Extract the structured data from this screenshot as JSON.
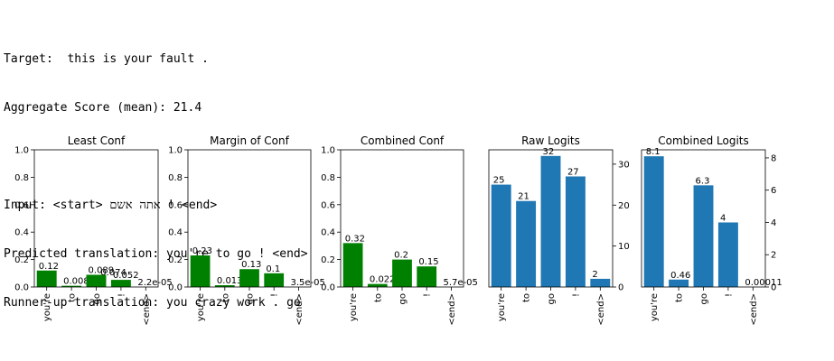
{
  "header": {
    "target_line": "Target:  this is your fault .",
    "score_line": "Aggregate Score (mean): 21.4",
    "input_line": "Input: <start> אתה אשם ! <end>",
    "predicted_line": "Predicted translation: you're to go ! <end>",
    "runner_up_line": "Runner-up translation: you crazy work . go"
  },
  "colors": {
    "green": "#008000",
    "blue": "#1f77b4"
  },
  "chart_data": [
    {
      "type": "bar",
      "title": "Least Conf",
      "categories": [
        "you're",
        "to",
        "go",
        "!",
        "<end>"
      ],
      "values": [
        0.12,
        0.0089,
        0.089,
        0.052,
        2.2e-05
      ],
      "labels": [
        "0.12",
        "0.0089",
        "0.089",
        "0.052",
        "2.2e-05"
      ],
      "extra_labels": [
        {
          "x_index": 2.5,
          "y": 0.074,
          "text": "0.074"
        }
      ],
      "ylim": [
        0,
        1.0
      ],
      "yticks": [
        "0.0",
        "0.2",
        "0.4",
        "0.6",
        "0.8",
        "1.0"
      ],
      "ytick_values": [
        0,
        0.2,
        0.4,
        0.6,
        0.8,
        1.0
      ],
      "yaxis_side": "left",
      "color": "green"
    },
    {
      "type": "bar",
      "title": "Margin of Conf",
      "categories": [
        "you're",
        "to",
        "go",
        "!",
        "<end>"
      ],
      "values": [
        0.23,
        0.013,
        0.13,
        0.1,
        3.5e-05
      ],
      "labels": [
        "0.23",
        "0.013",
        "0.13",
        "0.1",
        "3.5e-05"
      ],
      "ylim": [
        0,
        1.0
      ],
      "yticks": [
        "0.0",
        "0.2",
        "0.4",
        "0.6",
        "0.8",
        "1.0"
      ],
      "ytick_values": [
        0,
        0.2,
        0.4,
        0.6,
        0.8,
        1.0
      ],
      "yaxis_side": "left",
      "color": "green"
    },
    {
      "type": "bar",
      "title": "Combined Conf",
      "categories": [
        "you're",
        "to",
        "go",
        "!",
        "<end>"
      ],
      "values": [
        0.32,
        0.022,
        0.2,
        0.15,
        5.7e-05
      ],
      "labels": [
        "0.32",
        "0.022",
        "0.2",
        "0.15",
        "5.7e-05"
      ],
      "ylim": [
        0,
        1.0
      ],
      "yticks": [
        "0.0",
        "0.2",
        "0.4",
        "0.6",
        "0.8",
        "1.0"
      ],
      "ytick_values": [
        0,
        0.2,
        0.4,
        0.6,
        0.8,
        1.0
      ],
      "yaxis_side": "left",
      "color": "green"
    },
    {
      "type": "bar",
      "title": "Raw Logits",
      "categories": [
        "you're",
        "to",
        "go",
        "!",
        "<end>"
      ],
      "values": [
        25,
        21,
        32,
        27,
        2
      ],
      "labels": [
        "25",
        "21",
        "32",
        "27",
        "2"
      ],
      "ylim": [
        0,
        33.5
      ],
      "yticks": [
        "0",
        "10",
        "20",
        "30"
      ],
      "ytick_values": [
        0,
        10,
        20,
        30
      ],
      "yaxis_side": "right",
      "color": "blue"
    },
    {
      "type": "bar",
      "title": "Combined Logits",
      "categories": [
        "you're",
        "to",
        "go",
        "!",
        "<end>"
      ],
      "values": [
        8.1,
        0.46,
        6.3,
        4,
        0.00011
      ],
      "labels": [
        "8.1",
        "0.46",
        "6.3",
        "4",
        "0.00011"
      ],
      "ylim": [
        0,
        8.5
      ],
      "yticks": [
        "0",
        "2",
        "4",
        "6",
        "8"
      ],
      "ytick_values": [
        0,
        2,
        4,
        6,
        8
      ],
      "yaxis_side": "right",
      "color": "blue"
    }
  ]
}
